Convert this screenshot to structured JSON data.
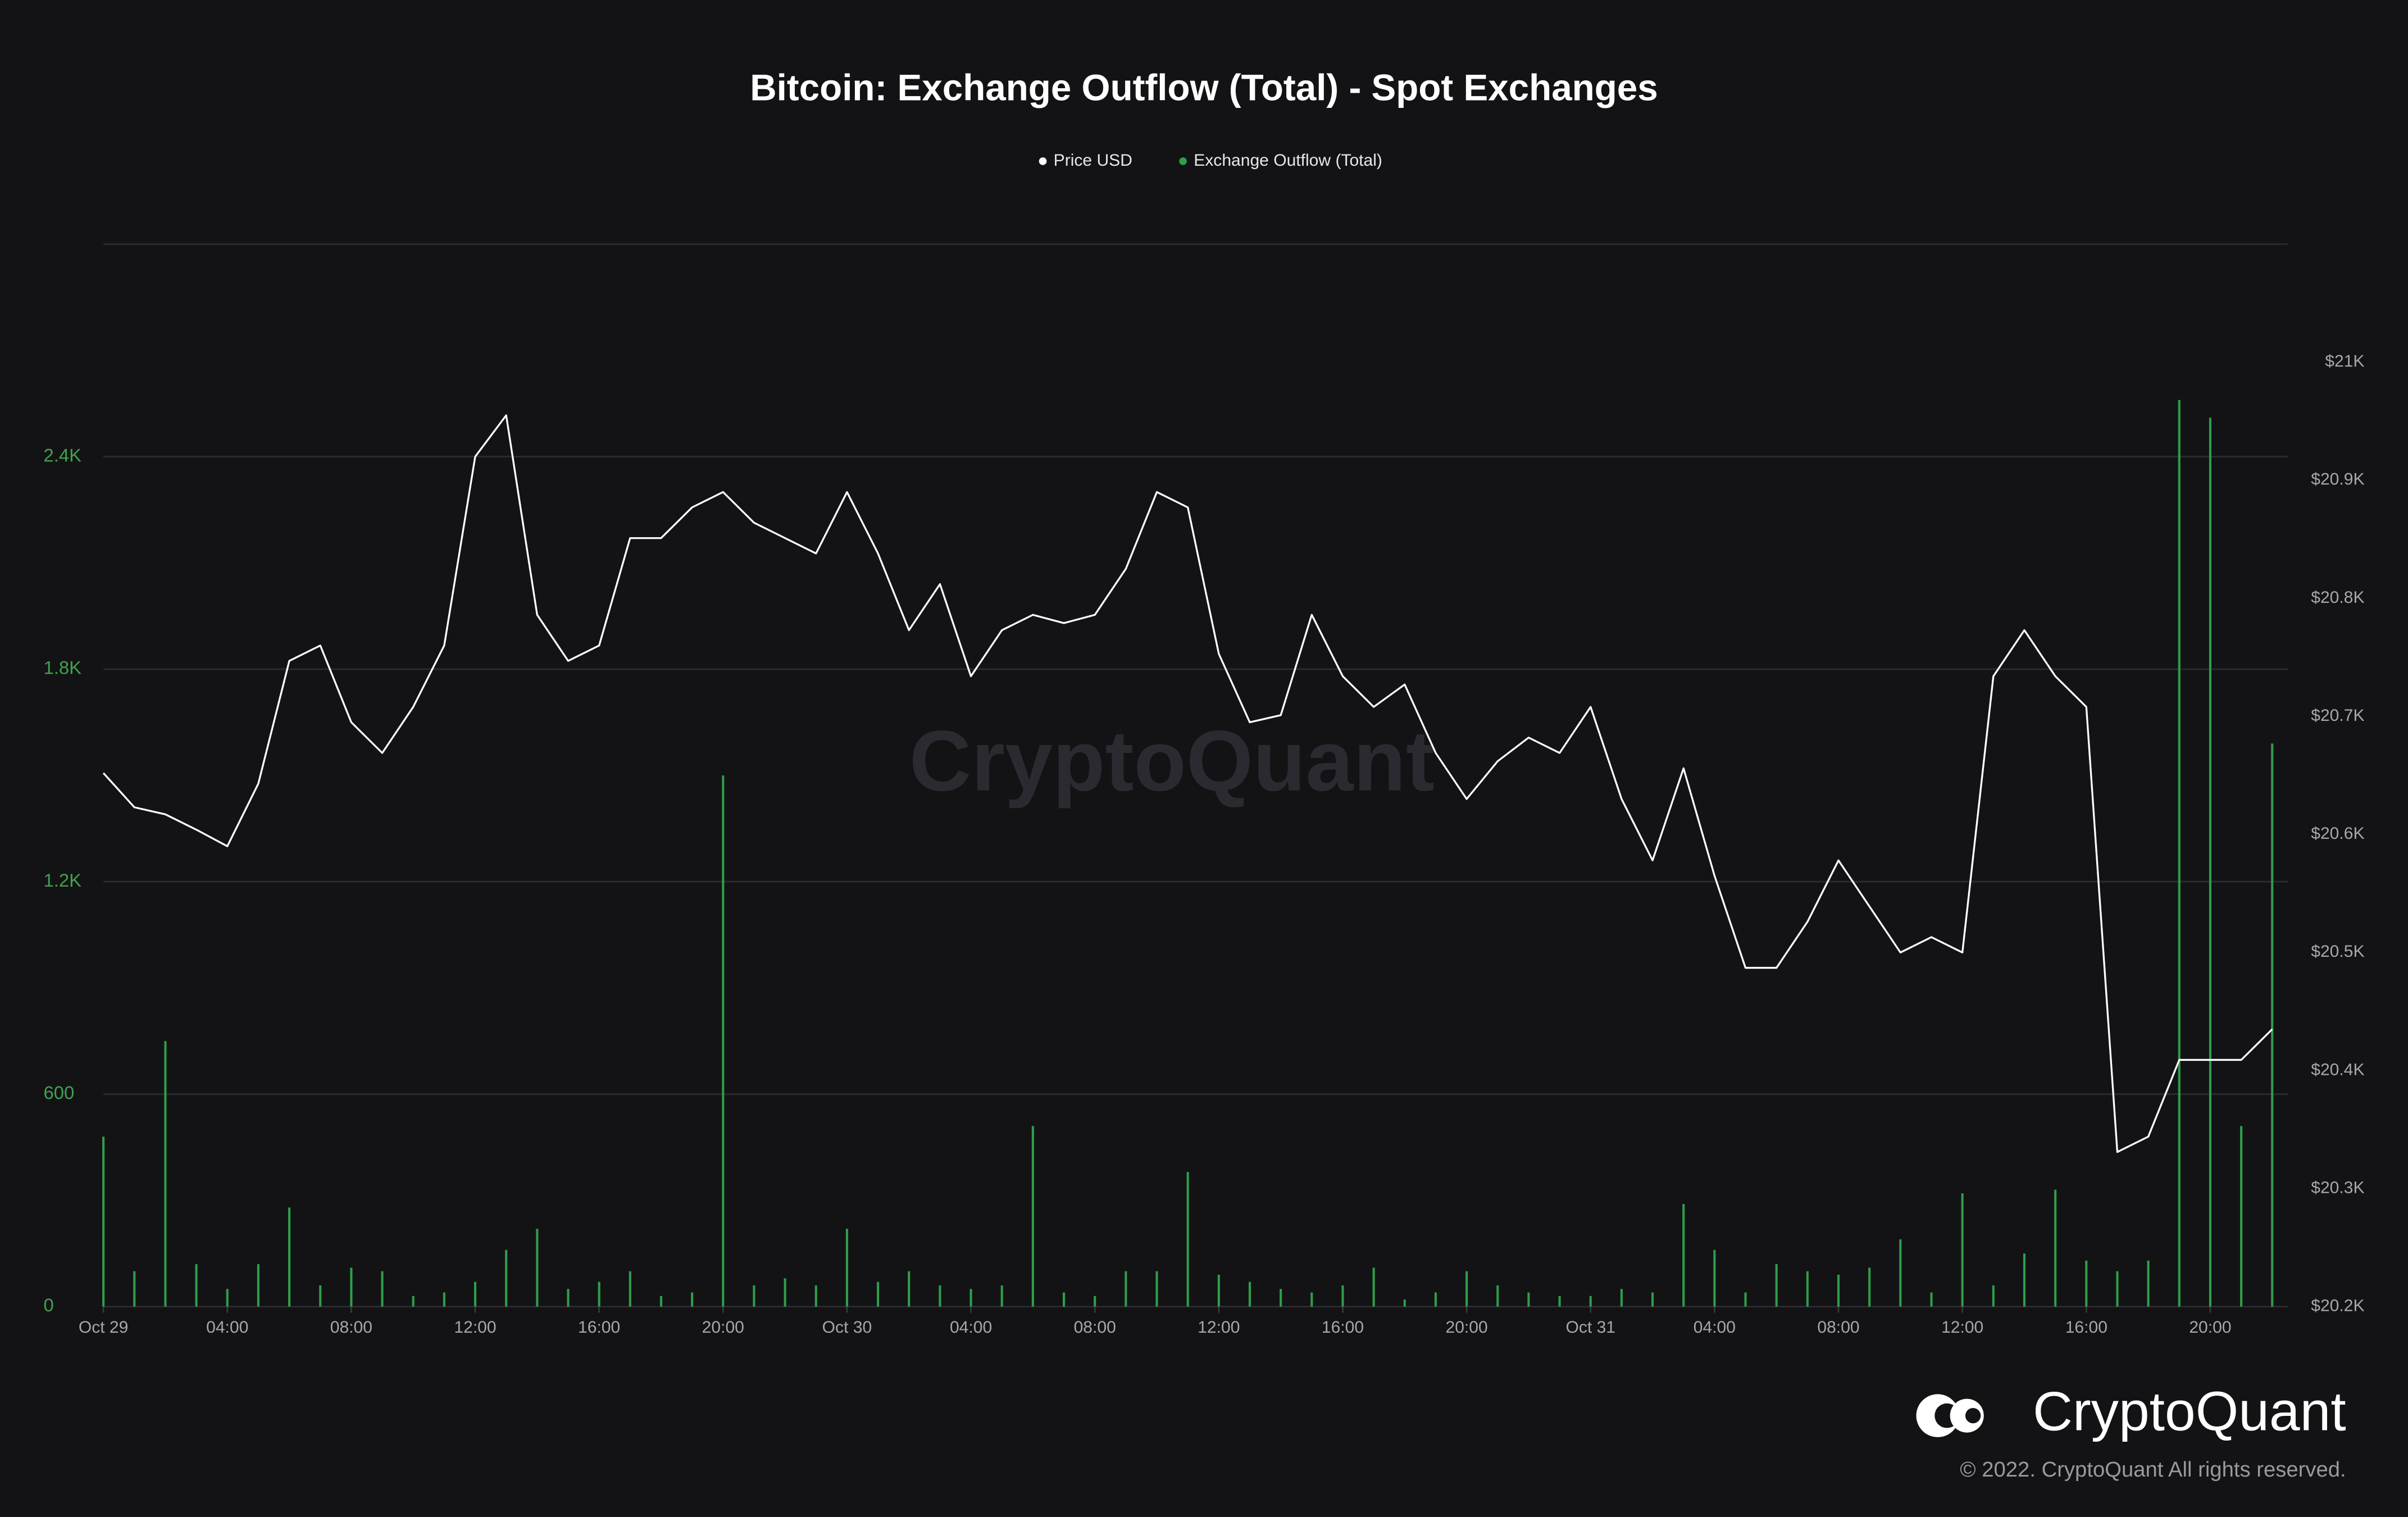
{
  "chart_data": {
    "type": "combo",
    "title": "Bitcoin: Exchange Outflow (Total) - Spot Exchanges",
    "x": [
      "Oct 29 00:00",
      "Oct 29 01:00",
      "Oct 29 02:00",
      "Oct 29 03:00",
      "Oct 29 04:00",
      "Oct 29 05:00",
      "Oct 29 06:00",
      "Oct 29 07:00",
      "Oct 29 08:00",
      "Oct 29 09:00",
      "Oct 29 10:00",
      "Oct 29 11:00",
      "Oct 29 12:00",
      "Oct 29 13:00",
      "Oct 29 14:00",
      "Oct 29 15:00",
      "Oct 29 16:00",
      "Oct 29 17:00",
      "Oct 29 18:00",
      "Oct 29 19:00",
      "Oct 29 20:00",
      "Oct 29 21:00",
      "Oct 29 22:00",
      "Oct 29 23:00",
      "Oct 30 00:00",
      "Oct 30 01:00",
      "Oct 30 02:00",
      "Oct 30 03:00",
      "Oct 30 04:00",
      "Oct 30 05:00",
      "Oct 30 06:00",
      "Oct 30 07:00",
      "Oct 30 08:00",
      "Oct 30 09:00",
      "Oct 30 10:00",
      "Oct 30 11:00",
      "Oct 30 12:00",
      "Oct 30 13:00",
      "Oct 30 14:00",
      "Oct 30 15:00",
      "Oct 30 16:00",
      "Oct 30 17:00",
      "Oct 30 18:00",
      "Oct 30 19:00",
      "Oct 30 20:00",
      "Oct 30 21:00",
      "Oct 30 22:00",
      "Oct 30 23:00",
      "Oct 31 00:00",
      "Oct 31 01:00",
      "Oct 31 02:00",
      "Oct 31 03:00",
      "Oct 31 04:00",
      "Oct 31 05:00",
      "Oct 31 06:00",
      "Oct 31 07:00",
      "Oct 31 08:00",
      "Oct 31 09:00",
      "Oct 31 10:00",
      "Oct 31 11:00",
      "Oct 31 12:00",
      "Oct 31 13:00",
      "Oct 31 14:00",
      "Oct 31 15:00",
      "Oct 31 16:00",
      "Oct 31 17:00",
      "Oct 31 18:00",
      "Oct 31 19:00",
      "Oct 31 20:00",
      "Oct 31 21:00",
      "Oct 31 22:00"
    ],
    "xlim": [
      "Oct 29 00:00",
      "Oct 31 22:30"
    ],
    "xticks": [
      {
        "value": "Oct 29 00:00",
        "label": "Oct 29"
      },
      {
        "value": "Oct 29 04:00",
        "label": "04:00"
      },
      {
        "value": "Oct 29 08:00",
        "label": "08:00"
      },
      {
        "value": "Oct 29 12:00",
        "label": "12:00"
      },
      {
        "value": "Oct 29 16:00",
        "label": "16:00"
      },
      {
        "value": "Oct 29 20:00",
        "label": "20:00"
      },
      {
        "value": "Oct 30 00:00",
        "label": "Oct 30"
      },
      {
        "value": "Oct 30 04:00",
        "label": "04:00"
      },
      {
        "value": "Oct 30 08:00",
        "label": "08:00"
      },
      {
        "value": "Oct 30 12:00",
        "label": "12:00"
      },
      {
        "value": "Oct 30 16:00",
        "label": "16:00"
      },
      {
        "value": "Oct 30 20:00",
        "label": "20:00"
      },
      {
        "value": "Oct 31 00:00",
        "label": "Oct 31"
      },
      {
        "value": "Oct 31 04:00",
        "label": "04:00"
      },
      {
        "value": "Oct 31 08:00",
        "label": "08:00"
      },
      {
        "value": "Oct 31 12:00",
        "label": "12:00"
      },
      {
        "value": "Oct 31 16:00",
        "label": "16:00"
      },
      {
        "value": "Oct 31 20:00",
        "label": "20:00"
      }
    ],
    "ylim": [
      0,
      3000
    ],
    "yticks": [
      0,
      600,
      {
        "value": 1200,
        "label": "1.2K"
      },
      {
        "value": 1800,
        "label": "1.8K"
      },
      {
        "value": 2400,
        "label": "2.4K"
      }
    ],
    "y2lim": [
      20200,
      21100
    ],
    "y2ticks": [
      {
        "value": 20200,
        "label": "$20.2K"
      },
      {
        "value": 20300,
        "label": "$20.3K"
      },
      {
        "value": 20400,
        "label": "$20.4K"
      },
      {
        "value": 20500,
        "label": "$20.5K"
      },
      {
        "value": 20600,
        "label": "$20.6K"
      },
      {
        "value": 20700,
        "label": "$20.7K"
      },
      {
        "value": 20800,
        "label": "$20.8K"
      },
      {
        "value": 20900,
        "label": "$20.9K"
      },
      {
        "value": 21000,
        "label": "$21K"
      }
    ],
    "grid": true,
    "legend": "top",
    "series": [
      {
        "name": "Price USD",
        "type": "line",
        "axis": "y2",
        "color": "#ffffff",
        "values": [
          20652,
          20623,
          20617,
          20604,
          20590,
          20643,
          20747,
          20760,
          20695,
          20669,
          20708,
          20760,
          20920,
          20955,
          20786,
          20747,
          20760,
          20851,
          20851,
          20877,
          20890,
          20864,
          20851,
          20838,
          20890,
          20838,
          20773,
          20812,
          20734,
          20773,
          20786,
          20779,
          20786,
          20825,
          20890,
          20877,
          20753,
          20695,
          20701,
          20786,
          20734,
          20708,
          20727,
          20669,
          20630,
          20662,
          20682,
          20669,
          20708,
          20630,
          20578,
          20656,
          20565,
          20487,
          20487,
          20526,
          20578,
          20539,
          20500,
          20513,
          20500,
          20734,
          20773,
          20734,
          20708,
          20331,
          20344,
          20409,
          20409,
          20409,
          20435
        ]
      },
      {
        "name": "Exchange Outflow (Total)",
        "type": "bar",
        "color": "#2f9e4a",
        "values": [
          480,
          100,
          750,
          120,
          50,
          120,
          280,
          60,
          110,
          100,
          30,
          40,
          70,
          160,
          220,
          50,
          70,
          100,
          30,
          40,
          1500,
          60,
          80,
          60,
          220,
          70,
          100,
          60,
          50,
          60,
          510,
          40,
          30,
          100,
          100,
          380,
          90,
          70,
          50,
          40,
          60,
          110,
          20,
          40,
          100,
          60,
          40,
          30,
          30,
          50,
          40,
          290,
          160,
          40,
          120,
          100,
          90,
          110,
          190,
          40,
          320,
          60,
          150,
          330,
          130,
          100,
          130,
          2560,
          2510,
          510,
          1590
        ]
      }
    ]
  },
  "branding": {
    "watermark": "CryptoQuant",
    "logo": "CryptoQuant",
    "copyright": "© 2022. CryptoQuant All rights reserved."
  }
}
